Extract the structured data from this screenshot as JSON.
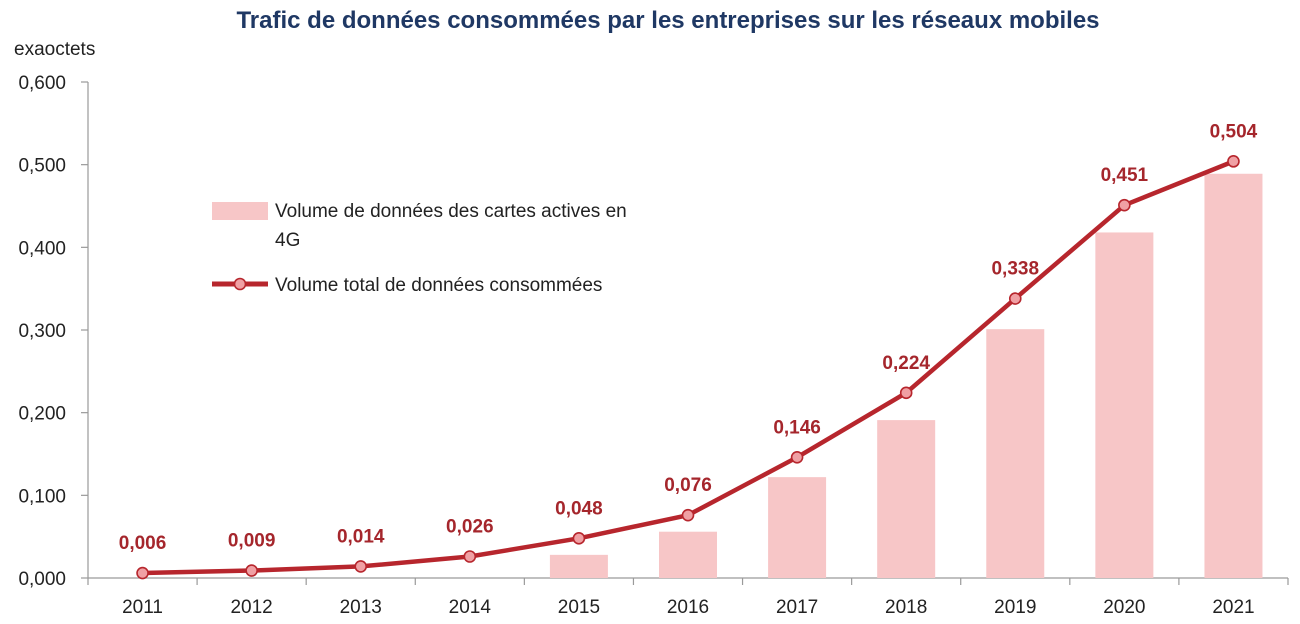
{
  "chart_data": {
    "type": "bar+line",
    "title": "Trafic de données consommées par les entreprises sur les réseaux mobiles",
    "ylabel": "exaoctets",
    "ylim": [
      0,
      0.6
    ],
    "yticks": [
      "0,000",
      "0,100",
      "0,200",
      "0,300",
      "0,400",
      "0,500",
      "0,600"
    ],
    "categories": [
      "2011",
      "2012",
      "2013",
      "2014",
      "2015",
      "2016",
      "2017",
      "2018",
      "2019",
      "2020",
      "2021"
    ],
    "series": [
      {
        "name": "Volume de données des cartes actives en 4G",
        "kind": "bar",
        "color": "#f7c6c7",
        "values": [
          null,
          null,
          null,
          null,
          0.028,
          0.056,
          0.122,
          0.191,
          0.301,
          0.418,
          0.489
        ]
      },
      {
        "name": "Volume total de données consommées",
        "kind": "line",
        "color": "#b7262d",
        "values": [
          0.006,
          0.009,
          0.014,
          0.026,
          0.048,
          0.076,
          0.146,
          0.224,
          0.338,
          0.451,
          0.504
        ],
        "labels": [
          "0,006",
          "0,009",
          "0,014",
          "0,026",
          "0,048",
          "0,076",
          "0,146",
          "0,224",
          "0,338",
          "0,451",
          "0,504"
        ]
      }
    ],
    "legend": {
      "bar_label_line1": "Volume de données des cartes actives en",
      "bar_label_line2": "4G",
      "line_label": "Volume total de données consommées"
    },
    "grid": false
  }
}
